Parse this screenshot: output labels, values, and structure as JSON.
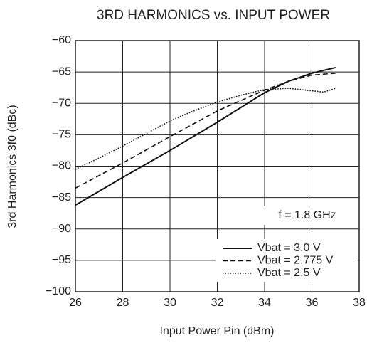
{
  "chart_data": {
    "type": "line",
    "title": "3RD HARMONICS vs. INPUT POWER",
    "xlabel": "Input Power  Pin (dBm)",
    "ylabel": "3rd Harmonics  3f0 (dBc)",
    "annotation": "f = 1.8 GHz",
    "xlim": [
      26,
      38
    ],
    "xticks": [
      26,
      28,
      30,
      32,
      34,
      36,
      38
    ],
    "ylim": [
      -100,
      -60
    ],
    "yticks": [
      {
        "value": -100,
        "label": "−100"
      },
      {
        "value": -95,
        "label": "−95"
      },
      {
        "value": -90,
        "label": "−90"
      },
      {
        "value": -85,
        "label": "−85"
      },
      {
        "value": -80,
        "label": "−80"
      },
      {
        "value": -75,
        "label": "−75"
      },
      {
        "value": -70,
        "label": "−70"
      },
      {
        "value": -65,
        "label": "−65"
      },
      {
        "value": -60,
        "label": "−60"
      }
    ],
    "grid": true,
    "series": [
      {
        "name": "Vbat = 3.0 V",
        "color": "#111111",
        "dash": "solid",
        "x": [
          26,
          28,
          30,
          32,
          34,
          35,
          36,
          37
        ],
        "values": [
          -86.2,
          -81.8,
          -77.5,
          -73,
          -68.3,
          -66.5,
          -65.2,
          -64.3
        ]
      },
      {
        "name": "Vbat = 2.775 V",
        "color": "#111111",
        "dash": "dashed",
        "x": [
          26,
          28,
          30,
          32,
          34,
          35,
          36,
          37
        ],
        "values": [
          -83.5,
          -79.5,
          -75.3,
          -71.2,
          -67.9,
          -66.5,
          -65.5,
          -65.2
        ]
      },
      {
        "name": "Vbat = 2.5 V",
        "color": "#111111",
        "dash": "dotted",
        "x": [
          26,
          27,
          28,
          29,
          30,
          31,
          32,
          33,
          34,
          35,
          36,
          36.5,
          37
        ],
        "values": [
          -80.5,
          -78.7,
          -76.8,
          -74.8,
          -72.8,
          -71.2,
          -69.8,
          -68.7,
          -67.8,
          -67.6,
          -68,
          -68.2,
          -67.6
        ]
      }
    ]
  }
}
